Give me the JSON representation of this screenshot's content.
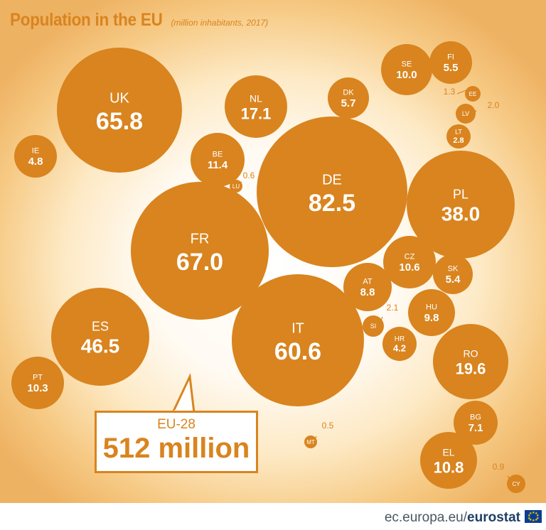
{
  "header": {
    "title": "Population in the EU",
    "subtitle": "(million inhabitants, 2017)"
  },
  "colors": {
    "bubble": "#d9841f",
    "background": "#fde9c4",
    "text_on_bubble": "#ffffff"
  },
  "chart_data": {
    "type": "bubble",
    "title": "Population in the EU",
    "subtitle": "(million inhabitants, 2017)",
    "unit": "million inhabitants",
    "year": 2017,
    "countries": [
      {
        "code": "UK",
        "value": "65.8"
      },
      {
        "code": "IE",
        "value": "4.8"
      },
      {
        "code": "NL",
        "value": "17.1"
      },
      {
        "code": "BE",
        "value": "11.4"
      },
      {
        "code": "LU",
        "value": "0.6"
      },
      {
        "code": "DK",
        "value": "5.7"
      },
      {
        "code": "SE",
        "value": "10.0"
      },
      {
        "code": "FI",
        "value": "5.5"
      },
      {
        "code": "EE",
        "value": "1.3"
      },
      {
        "code": "LV",
        "value": "2.0"
      },
      {
        "code": "LT",
        "value": "2.8"
      },
      {
        "code": "DE",
        "value": "82.5"
      },
      {
        "code": "PL",
        "value": "38.0"
      },
      {
        "code": "FR",
        "value": "67.0"
      },
      {
        "code": "CZ",
        "value": "10.6"
      },
      {
        "code": "SK",
        "value": "5.4"
      },
      {
        "code": "AT",
        "value": "8.8"
      },
      {
        "code": "HU",
        "value": "9.8"
      },
      {
        "code": "SI",
        "value": "2.1"
      },
      {
        "code": "HR",
        "value": "4.2"
      },
      {
        "code": "ES",
        "value": "46.5"
      },
      {
        "code": "PT",
        "value": "10.3"
      },
      {
        "code": "IT",
        "value": "60.6"
      },
      {
        "code": "RO",
        "value": "19.6"
      },
      {
        "code": "BG",
        "value": "7.1"
      },
      {
        "code": "MT",
        "value": "0.5"
      },
      {
        "code": "EL",
        "value": "10.8"
      },
      {
        "code": "CY",
        "value": "0.9"
      }
    ],
    "total": {
      "label": "EU-28",
      "value": "512 million"
    }
  },
  "footer": {
    "source_prefix": "ec.europa.eu/",
    "source_brand": "eurostat"
  }
}
